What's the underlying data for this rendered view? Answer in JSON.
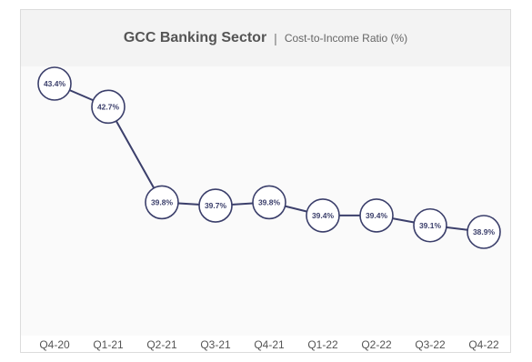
{
  "header": {
    "title": "GCC Banking Sector",
    "separator": "|",
    "subtitle": "Cost-to-Income Ratio (%)"
  },
  "colors": {
    "line": "#3b3f6b",
    "marker_fill": "#ffffff",
    "title_band": "#f3f3f3",
    "plot_band": "#fafafa"
  },
  "chart_data": {
    "type": "line",
    "title": "GCC Banking Sector",
    "subtitle": "Cost-to-Income Ratio (%)",
    "categories": [
      "Q4-20",
      "Q1-21",
      "Q2-21",
      "Q3-21",
      "Q4-21",
      "Q1-22",
      "Q2-22",
      "Q3-22",
      "Q4-22"
    ],
    "series": [
      {
        "values": [
          43.4,
          42.7,
          39.8,
          39.7,
          39.8,
          39.4,
          39.4,
          39.1,
          38.9
        ],
        "labels": [
          "43.4%",
          "42.7%",
          "39.8%",
          "39.7%",
          "39.8%",
          "39.4%",
          "39.4%",
          "39.1%",
          "38.9%"
        ]
      }
    ],
    "xlabel": "",
    "ylabel": "",
    "ylim": [
      38.9,
      43.4
    ],
    "grid": false,
    "legend": "none",
    "data_labels": true
  }
}
